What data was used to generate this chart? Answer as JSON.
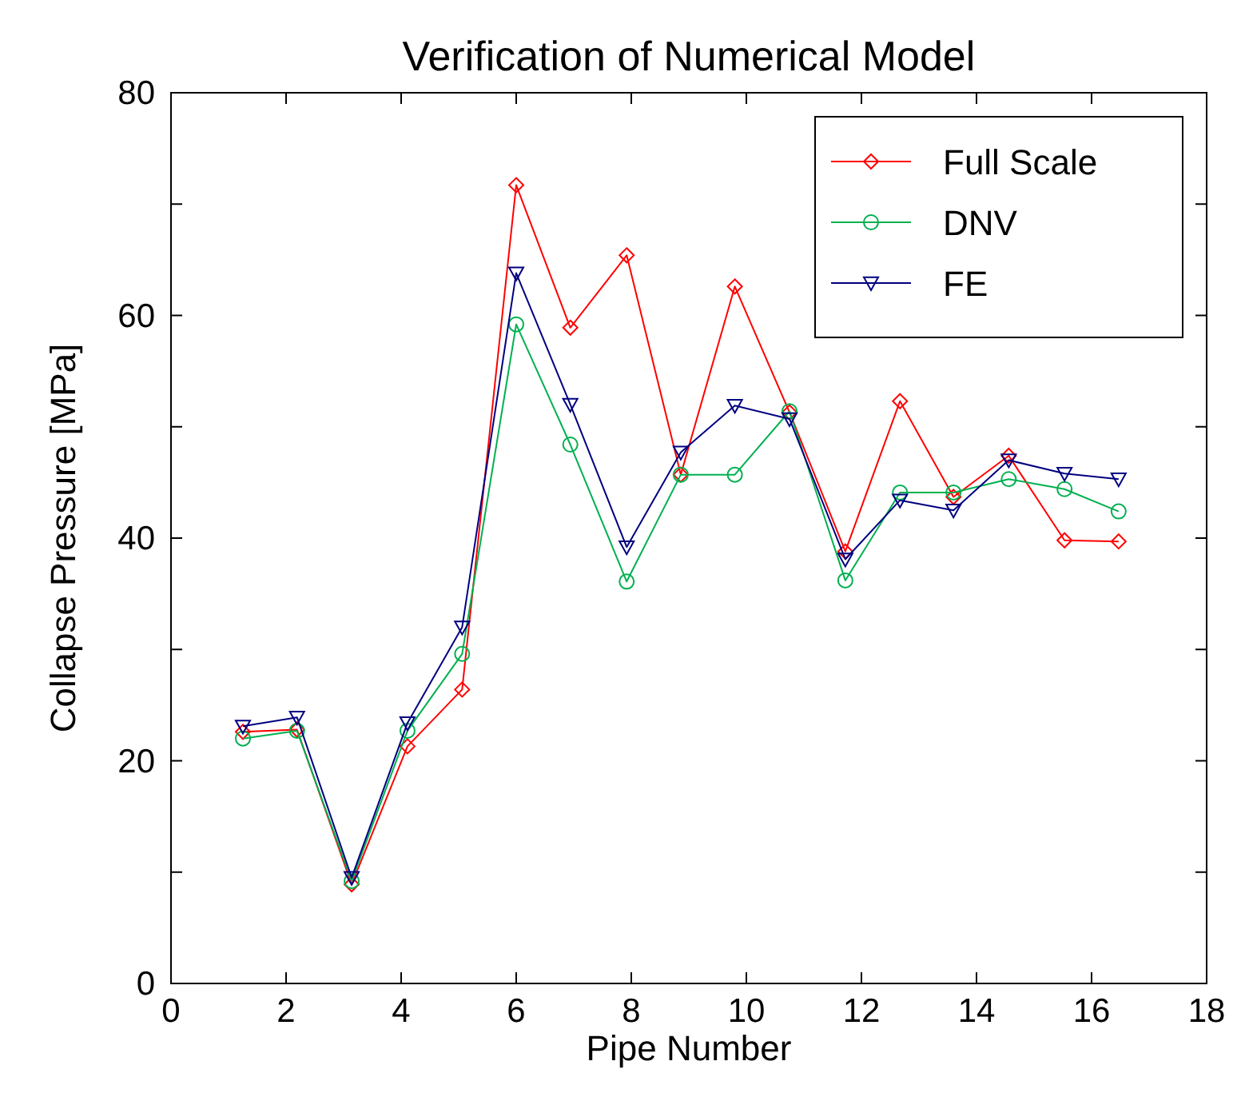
{
  "chart_data": {
    "type": "line",
    "title": "Verification of Numerical Model",
    "xlabel": "Pipe Number",
    "ylabel": "Collapse Pressure [MPa]",
    "x": [
      1.25,
      2.19,
      3.14,
      4.11,
      5.06,
      6.0,
      6.94,
      7.92,
      8.86,
      9.8,
      10.75,
      11.72,
      12.67,
      13.6,
      14.56,
      15.53,
      16.47
    ],
    "series": [
      {
        "name": "Full Scale",
        "color": "#ff0000",
        "marker": "diamond",
        "values": [
          22.6,
          22.8,
          8.9,
          21.3,
          26.4,
          71.7,
          58.9,
          65.4,
          45.7,
          62.6,
          51.3,
          38.8,
          52.3,
          43.7,
          47.4,
          39.8,
          39.7
        ]
      },
      {
        "name": "DNV",
        "color": "#00b050",
        "marker": "circle",
        "values": [
          22.0,
          22.7,
          9.2,
          22.7,
          29.6,
          59.2,
          48.4,
          36.1,
          45.7,
          45.7,
          51.4,
          36.2,
          44.1,
          44.1,
          45.3,
          44.4,
          42.4
        ]
      },
      {
        "name": "FE",
        "color": "#000080",
        "marker": "triangle",
        "values": [
          23.1,
          23.9,
          9.5,
          23.4,
          32.0,
          63.8,
          52.0,
          39.2,
          47.7,
          51.9,
          50.7,
          38.1,
          43.4,
          42.5,
          47.0,
          45.8,
          45.3
        ]
      }
    ],
    "xlim": [
      0,
      18
    ],
    "xticks": [
      0,
      2,
      4,
      6,
      8,
      10,
      12,
      14,
      16,
      18
    ],
    "ylim": [
      0,
      80
    ],
    "yticks": [
      0,
      {
        "value": 10,
        "label": null
      },
      20,
      {
        "value": 30,
        "label": null
      },
      40,
      {
        "value": 50,
        "label": null
      },
      60,
      {
        "value": 70,
        "label": null
      },
      80
    ],
    "grid": false,
    "legend": "top right"
  }
}
